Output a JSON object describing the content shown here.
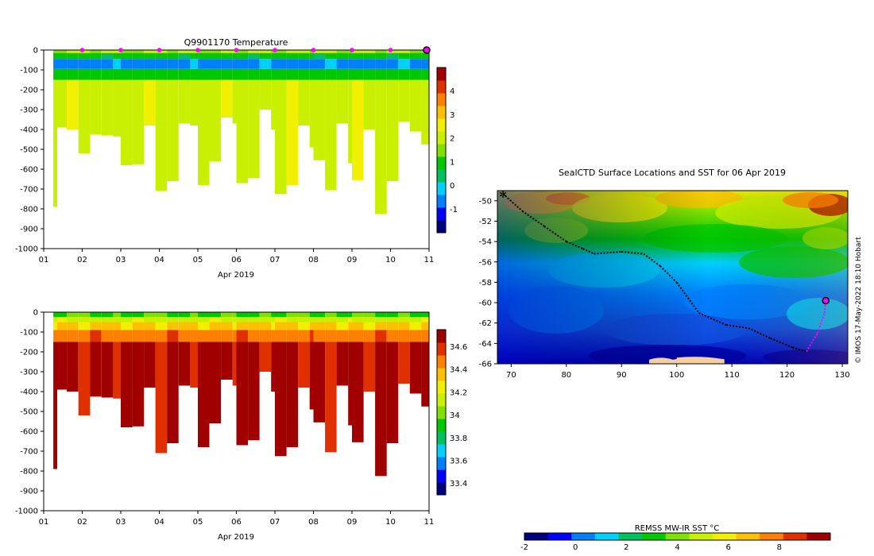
{
  "chart_data": [
    {
      "type": "heatmap",
      "title": "Q9901170  Temperature",
      "xlabel": "Apr 2019",
      "ylabel": "",
      "xlim": [
        1,
        11
      ],
      "ylim": [
        -1000,
        0
      ],
      "x_ticks": [
        "01",
        "02",
        "03",
        "04",
        "05",
        "06",
        "07",
        "08",
        "09",
        "10",
        "11"
      ],
      "y_ticks": [
        "0",
        "-100",
        "-200",
        "-300",
        "-400",
        "-500",
        "-600",
        "-700",
        "-800",
        "-900",
        "-1000"
      ],
      "colorbar_ticks": [
        "-1",
        "0",
        "1",
        "2",
        "3",
        "4"
      ],
      "colorbar_range": [
        -2,
        5
      ],
      "colormap": [
        "#00007f",
        "#0000ff",
        "#0080ff",
        "#00d0ff",
        "#00c060",
        "#00c800",
        "#80e000",
        "#c8f000",
        "#f0f000",
        "#ffc000",
        "#ff8000",
        "#e03000",
        "#a00000"
      ],
      "surface_markers_day": [
        2,
        3,
        4,
        5,
        6,
        7,
        8,
        9,
        10
      ],
      "last_profile_day": 11,
      "marker_color": "#ff00ff",
      "profiles": [
        {
          "day": 1.25,
          "depth": 790
        },
        {
          "day": 1.35,
          "depth": 390
        },
        {
          "day": 1.6,
          "depth": 400
        },
        {
          "day": 1.9,
          "depth": 520
        },
        {
          "day": 2.2,
          "depth": 425
        },
        {
          "day": 2.5,
          "depth": 430
        },
        {
          "day": 2.8,
          "depth": 435
        },
        {
          "day": 3.0,
          "depth": 580
        },
        {
          "day": 3.3,
          "depth": 575
        },
        {
          "day": 3.6,
          "depth": 380
        },
        {
          "day": 3.9,
          "depth": 710
        },
        {
          "day": 4.2,
          "depth": 660
        },
        {
          "day": 4.5,
          "depth": 370
        },
        {
          "day": 4.8,
          "depth": 380
        },
        {
          "day": 5.0,
          "depth": 680
        },
        {
          "day": 5.3,
          "depth": 560
        },
        {
          "day": 5.6,
          "depth": 340
        },
        {
          "day": 5.9,
          "depth": 370
        },
        {
          "day": 6.0,
          "depth": 670
        },
        {
          "day": 6.3,
          "depth": 645
        },
        {
          "day": 6.6,
          "depth": 300
        },
        {
          "day": 6.9,
          "depth": 400
        },
        {
          "day": 7.0,
          "depth": 725
        },
        {
          "day": 7.3,
          "depth": 680
        },
        {
          "day": 7.6,
          "depth": 380
        },
        {
          "day": 7.9,
          "depth": 490
        },
        {
          "day": 8.0,
          "depth": 555
        },
        {
          "day": 8.3,
          "depth": 705
        },
        {
          "day": 8.6,
          "depth": 370
        },
        {
          "day": 8.9,
          "depth": 570
        },
        {
          "day": 9.0,
          "depth": 655
        },
        {
          "day": 9.3,
          "depth": 400
        },
        {
          "day": 9.6,
          "depth": 825
        },
        {
          "day": 9.9,
          "depth": 660
        },
        {
          "day": 10.2,
          "depth": 360
        },
        {
          "day": 10.5,
          "depth": 410
        },
        {
          "day": 10.8,
          "depth": 475
        }
      ]
    },
    {
      "type": "heatmap",
      "title": "",
      "xlabel": "Apr 2019",
      "ylabel": "",
      "xlim": [
        1,
        11
      ],
      "ylim": [
        -1000,
        0
      ],
      "x_ticks": [
        "01",
        "02",
        "03",
        "04",
        "05",
        "06",
        "07",
        "08",
        "09",
        "10",
        "11"
      ],
      "y_ticks": [
        "0",
        "-100",
        "-200",
        "-300",
        "-400",
        "-500",
        "-600",
        "-700",
        "-800",
        "-900",
        "-1000"
      ],
      "colorbar_ticks": [
        "33.4",
        "33.6",
        "33.8",
        "34",
        "34.2",
        "34.4",
        "34.6"
      ],
      "colorbar_range": [
        33.3,
        34.75
      ],
      "colormap": [
        "#00007f",
        "#0000ff",
        "#0080ff",
        "#00d0ff",
        "#00c060",
        "#00c800",
        "#80e000",
        "#c8f000",
        "#f0f000",
        "#ffc000",
        "#ff8000",
        "#e03000",
        "#a00000"
      ],
      "profiles_same_as_temperature": true
    },
    {
      "type": "heatmap",
      "title": "SealCTD Surface Locations and SST for 06 Apr 2019",
      "xlabel": "",
      "ylabel": "",
      "xlim": [
        67.5,
        131
      ],
      "ylim": [
        -66,
        -49
      ],
      "x_ticks": [
        "70",
        "80",
        "90",
        "100",
        "110",
        "120",
        "130"
      ],
      "y_ticks": [
        "-50",
        "-52",
        "-54",
        "-56",
        "-58",
        "-60",
        "-62",
        "-64",
        "-66"
      ],
      "colorbar_label": "REMSS MW-IR SST °C",
      "colorbar_ticks": [
        "-2",
        "0",
        "2",
        "4",
        "6",
        "8"
      ],
      "colorbar_range": [
        -2,
        10
      ],
      "credit": "© IMOS 17-May-2022 18:10 Hobart",
      "land_color": "#f5cfa0",
      "track_color": "#000000",
      "recent_track_color": "#ff00ff",
      "track": [
        {
          "lon": 68.5,
          "lat": -49.3
        },
        {
          "lon": 72,
          "lat": -51
        },
        {
          "lon": 76,
          "lat": -52.5
        },
        {
          "lon": 80,
          "lat": -54
        },
        {
          "lon": 83,
          "lat": -54.7
        },
        {
          "lon": 85,
          "lat": -55.2
        },
        {
          "lon": 90,
          "lat": -55
        },
        {
          "lon": 94,
          "lat": -55.2
        },
        {
          "lon": 97,
          "lat": -56.4
        },
        {
          "lon": 100,
          "lat": -58
        },
        {
          "lon": 104,
          "lat": -61
        },
        {
          "lon": 109,
          "lat": -62.2
        },
        {
          "lon": 113,
          "lat": -62.5
        },
        {
          "lon": 117,
          "lat": -63.5
        },
        {
          "lon": 121,
          "lat": -64.4
        },
        {
          "lon": 123.5,
          "lat": -64.8
        }
      ],
      "recent_track": [
        {
          "lon": 123.5,
          "lat": -64.8
        },
        {
          "lon": 125.5,
          "lat": -63
        },
        {
          "lon": 126.8,
          "lat": -61
        },
        {
          "lon": 127,
          "lat": -59.8
        }
      ],
      "start_marker": {
        "lon": 68.5,
        "lat": -49.3
      },
      "end_marker": {
        "lon": 127,
        "lat": -59.8
      }
    }
  ]
}
